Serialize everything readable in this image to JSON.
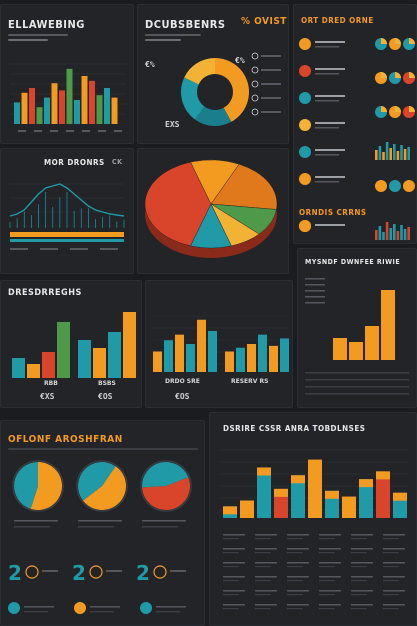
{
  "colors": {
    "teal": "#1f9aa6",
    "teal_dark": "#1b7e8c",
    "orange": "#f39a21",
    "orange_dark": "#e0781c",
    "red": "#d9452b",
    "green": "#4f9a4a",
    "yellow": "#f2b233"
  },
  "panels": {
    "top_left": {
      "title": "ELLAWEBING"
    },
    "top_mid": {
      "title": "DCUBSBENRS",
      "pct": "% OVIST",
      "pct_badge": "€%",
      "label_top": "€%",
      "label_bottom": "EXS"
    },
    "top_right": {
      "title": "ORT DRED ORNE",
      "mid_title": "ORNDIS CRRNS"
    },
    "mid_left": {
      "title": "MOR DRONRS",
      "badge": "CK"
    },
    "mid_pie": {
      "label": "€%%",
      "slice_label": "0"
    },
    "mid_right": {
      "title": "MYSNDF DWNFEE RIWIE"
    },
    "bars_left": {
      "title": "DRESDRREGHS",
      "caption_left": "RBB",
      "caption_right": "BSBS",
      "footer_left": "€XS",
      "footer_right": "€OS"
    },
    "bars_mid": {
      "caption_left": "DRDO SRE",
      "caption_right": "RESERV RS",
      "footer": "€OS"
    },
    "bottom_left": {
      "title": "OFLONF AROSHFRAN",
      "numbers": [
        "2",
        "2",
        "2"
      ]
    },
    "bottom_right": {
      "title": "DSRIRE CSSR ANRA TOBDLNSES"
    }
  },
  "chart_data": [
    {
      "type": "bar",
      "panel": "top_left",
      "title": "ELLAWEBING",
      "categories": [
        "1",
        "2",
        "3",
        "4",
        "5",
        "6",
        "7",
        "8",
        "9",
        "10",
        "11",
        "12",
        "13",
        "14"
      ],
      "series": [
        {
          "values": [
            18,
            26,
            30,
            14,
            22,
            34,
            28,
            46,
            20,
            40,
            36,
            24,
            30,
            22
          ]
        }
      ],
      "ylim": [
        0,
        50
      ]
    },
    {
      "type": "pie",
      "panel": "top_mid",
      "title": "DCUBSBENRS",
      "slices": [
        {
          "value": 42,
          "color": "orange"
        },
        {
          "value": 18,
          "color": "teal_dark"
        },
        {
          "value": 22,
          "color": "teal"
        },
        {
          "value": 18,
          "color": "yellow"
        }
      ]
    },
    {
      "type": "line",
      "panel": "mid_left",
      "title": "MOR DRONRS",
      "x": [
        0,
        1,
        2,
        3,
        4,
        5,
        6,
        7,
        8,
        9,
        10,
        11,
        12,
        13,
        14,
        15,
        16
      ],
      "series": [
        {
          "values": [
            12,
            14,
            18,
            26,
            34,
            40,
            42,
            44,
            40,
            34,
            28,
            22,
            18,
            16,
            14,
            13,
            12
          ]
        }
      ]
    },
    {
      "type": "pie",
      "panel": "mid_pie",
      "slices": [
        {
          "value": 40,
          "color": "red"
        },
        {
          "value": 12,
          "color": "orange"
        },
        {
          "value": 20,
          "color": "orange_dark"
        },
        {
          "value": 10,
          "color": "green"
        },
        {
          "value": 8,
          "color": "yellow"
        },
        {
          "value": 10,
          "color": "teal"
        }
      ]
    },
    {
      "type": "bar",
      "panel": "mid_right",
      "title": "MYSNDF DWNFEE RIWIE",
      "categories": [
        "1",
        "2",
        "3",
        "4"
      ],
      "series": [
        {
          "values": [
            22,
            18,
            34,
            70
          ]
        }
      ],
      "ylim": [
        0,
        80
      ]
    },
    {
      "type": "bar",
      "panel": "bars_left",
      "title": "DRESDRREGHS",
      "categories": [
        "1",
        "2",
        "3",
        "4",
        "5",
        "6",
        "7",
        "8"
      ],
      "series": [
        {
          "values": [
            20,
            14,
            26,
            56,
            38,
            30,
            46,
            66
          ]
        }
      ],
      "ylim": [
        0,
        70
      ]
    },
    {
      "type": "bar",
      "panel": "bars_mid",
      "categories": [
        "1",
        "2",
        "3",
        "4",
        "5",
        "6",
        "7",
        "8",
        "9",
        "10",
        "11",
        "12"
      ],
      "series": [
        {
          "name": "",
          "values": [
            22,
            34,
            40,
            30,
            56,
            44,
            22,
            26,
            30,
            40,
            28,
            36
          ]
        }
      ],
      "ylim": [
        0,
        60
      ]
    },
    {
      "type": "pie",
      "panel": "bottom_left",
      "slices": [
        {
          "value": 55,
          "color": "orange"
        },
        {
          "value": 45,
          "color": "teal"
        }
      ]
    },
    {
      "type": "bar",
      "panel": "bottom_right",
      "title": "DSRIRE CSSR ANRA TOBDLNSES",
      "categories": [
        "1",
        "2",
        "3",
        "4",
        "5",
        "6",
        "7",
        "8",
        "9",
        "10",
        "11"
      ],
      "series": [
        {
          "name": "",
          "values": [
            12,
            18,
            52,
            30,
            44,
            60,
            28,
            22,
            40,
            48,
            26
          ]
        }
      ],
      "ylim": [
        0,
        70
      ]
    }
  ]
}
